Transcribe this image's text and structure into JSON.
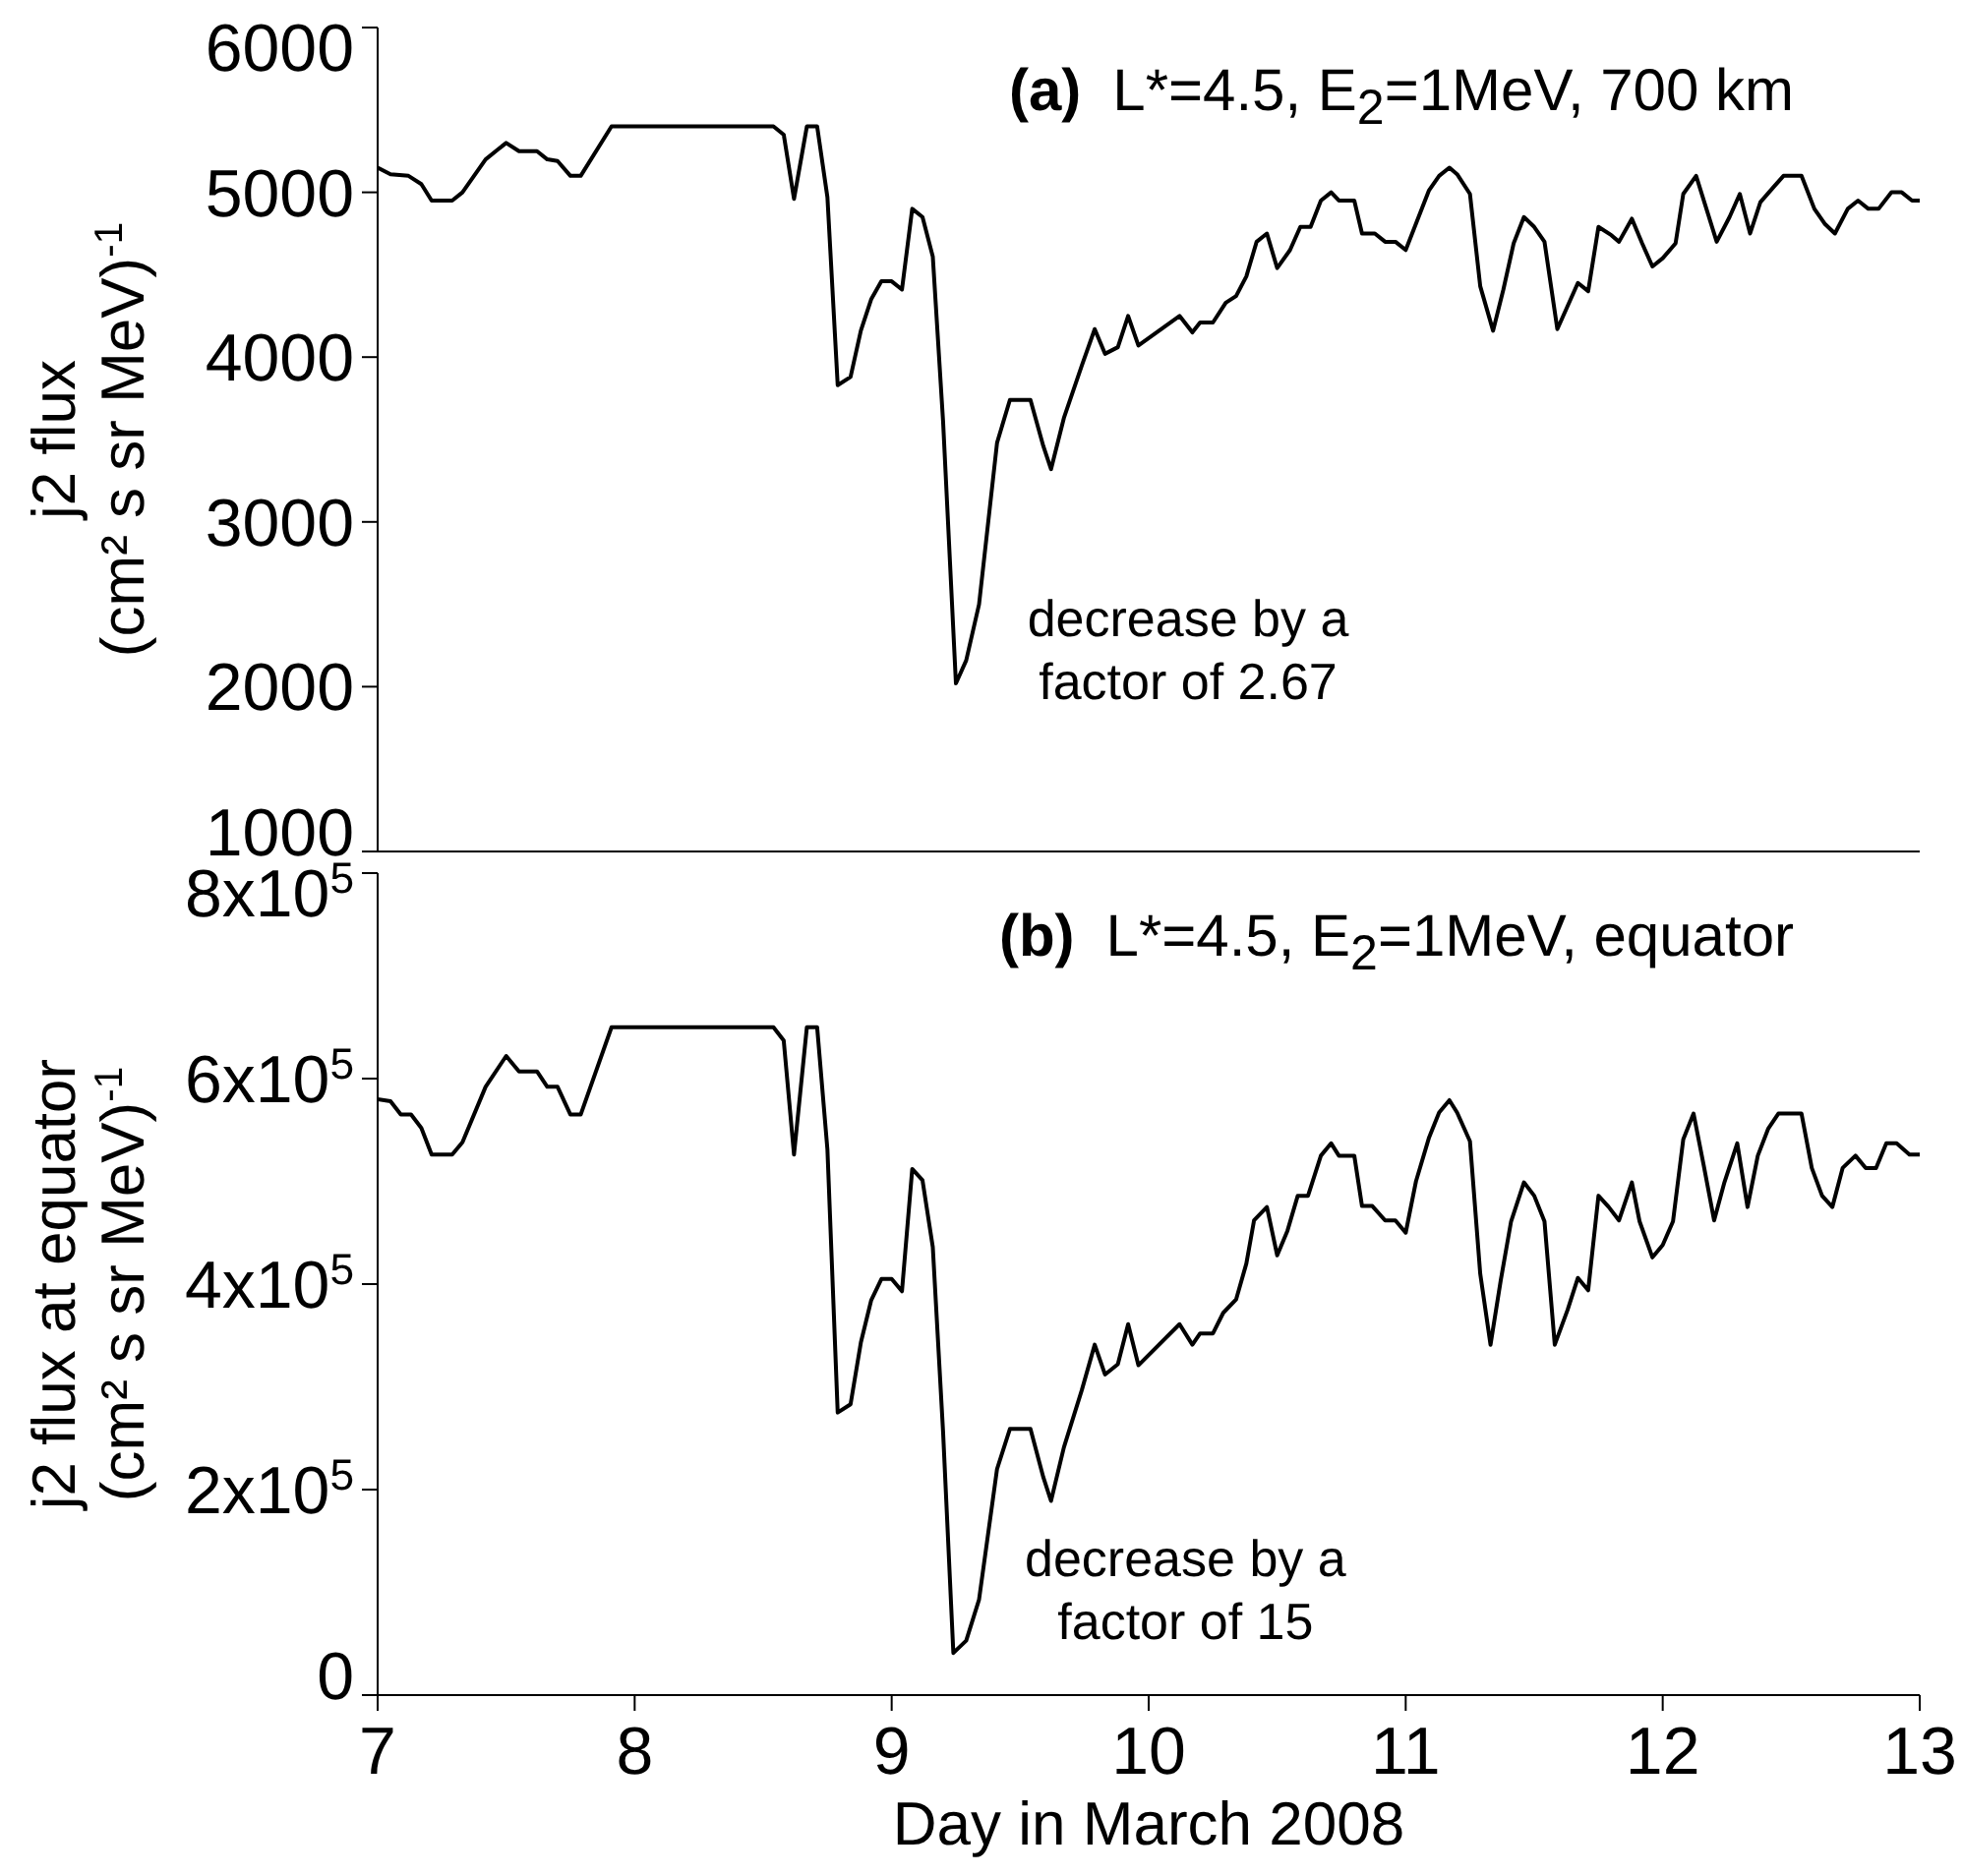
{
  "chart_data": [
    {
      "type": "line",
      "title": "(a) L*=4.5, E$_{2}$=1MeV, 700 km",
      "ylabel": "j2 flux\n(cm² s sr MeV)$^{-1}$",
      "annotations": [
        {
          "text": "decrease by a\nfactor of 2.67",
          "x": 9.25,
          "y": 2020
        }
      ],
      "x": [
        7.0,
        7.05,
        7.12,
        7.17,
        7.21,
        7.29,
        7.33,
        7.42,
        7.5,
        7.55,
        7.62,
        7.66,
        7.7,
        7.75,
        7.79,
        7.91,
        8.54,
        8.58,
        8.62,
        8.67,
        8.71,
        8.75,
        8.79,
        8.84,
        8.88,
        8.92,
        8.96,
        9.0,
        9.04,
        9.08,
        9.12,
        9.16,
        9.2,
        9.25,
        9.29,
        9.34,
        9.41,
        9.46,
        9.54,
        9.59,
        9.62,
        9.67,
        9.74,
        9.79,
        9.83,
        9.88,
        9.92,
        9.96,
        10.12,
        10.17,
        10.2,
        10.25,
        10.3,
        10.34,
        10.38,
        10.42,
        10.46,
        10.5,
        10.55,
        10.59,
        10.63,
        10.67,
        10.71,
        10.74,
        10.8,
        10.83,
        10.88,
        10.92,
        10.96,
        11.0,
        11.04,
        11.09,
        11.13,
        11.17,
        11.2,
        11.25,
        11.29,
        11.34,
        11.38,
        11.42,
        11.46,
        11.5,
        11.54,
        11.59,
        11.63,
        11.67,
        11.71,
        11.75,
        11.8,
        11.83,
        11.88,
        11.92,
        11.96,
        12.0,
        12.05,
        12.08,
        12.13,
        12.17,
        12.21,
        12.26,
        12.3,
        12.34,
        12.38,
        12.43,
        12.47,
        12.54,
        12.59,
        12.63,
        12.67,
        12.72,
        12.76,
        12.8,
        12.84,
        12.89,
        12.93,
        12.97,
        13.0
      ],
      "series": [
        {
          "color": "#000000",
          "values": [
            5150,
            5110,
            5100,
            5050,
            4950,
            4950,
            5000,
            5200,
            5300,
            5250,
            5250,
            5200,
            5190,
            5100,
            5100,
            5400,
            5400,
            5350,
            4960,
            5400,
            5400,
            4970,
            3830,
            3880,
            4160,
            4350,
            4460,
            4460,
            4410,
            4900,
            4850,
            4610,
            3610,
            2020,
            2160,
            2500,
            3480,
            3740,
            3740,
            3460,
            3320,
            3630,
            3950,
            4170,
            4020,
            4060,
            4250,
            4070,
            4250,
            4150,
            4210,
            4210,
            4330,
            4370,
            4490,
            4700,
            4750,
            4540,
            4650,
            4790,
            4790,
            4950,
            5000,
            4950,
            4950,
            4750,
            4750,
            4700,
            4700,
            4650,
            4810,
            5010,
            5100,
            5150,
            5110,
            4990,
            4430,
            4160,
            4410,
            4690,
            4850,
            4790,
            4700,
            4170,
            4310,
            4450,
            4400,
            4790,
            4740,
            4700,
            4840,
            4690,
            4550,
            4600,
            4690,
            4990,
            5100,
            4900,
            4700,
            4850,
            4990,
            4750,
            4940,
            5030,
            5100,
            5100,
            4900,
            4810,
            4750,
            4900,
            4950,
            4900,
            4900,
            5000,
            5000,
            4950,
            4950
          ]
        }
      ],
      "xlim": [
        7,
        13
      ],
      "xticks": [
        7,
        8,
        9,
        10,
        11,
        12,
        13
      ],
      "ylim": [
        1000,
        6000
      ],
      "yticks": [
        1000,
        2000,
        3000,
        4000,
        5000,
        6000
      ],
      "tick_labels": "y"
    },
    {
      "type": "line",
      "title": "(b) L*=4.5, E$_{2}$=1MeV, equator",
      "xlabel": "Day in March 2008",
      "ylabel": "j2 flux at equator\n(cm² s sr MeV)$^{-1}$",
      "annotations": [
        {
          "text": "decrease by a\nfactor of 15",
          "x": 9.24,
          "y": 41000
        }
      ],
      "x": [
        7.0,
        7.05,
        7.09,
        7.13,
        7.17,
        7.21,
        7.29,
        7.33,
        7.42,
        7.5,
        7.55,
        7.62,
        7.66,
        7.7,
        7.75,
        7.79,
        7.91,
        8.54,
        8.58,
        8.62,
        8.67,
        8.71,
        8.75,
        8.79,
        8.84,
        8.88,
        8.92,
        8.96,
        9.0,
        9.04,
        9.08,
        9.12,
        9.16,
        9.2,
        9.24,
        9.29,
        9.34,
        9.41,
        9.46,
        9.54,
        9.59,
        9.62,
        9.67,
        9.74,
        9.79,
        9.83,
        9.88,
        9.92,
        9.96,
        10.12,
        10.17,
        10.2,
        10.25,
        10.29,
        10.34,
        10.38,
        10.41,
        10.46,
        10.5,
        10.54,
        10.58,
        10.62,
        10.67,
        10.71,
        10.74,
        10.8,
        10.83,
        10.87,
        10.92,
        10.96,
        11.0,
        11.04,
        11.09,
        11.13,
        11.17,
        11.2,
        11.25,
        11.29,
        11.33,
        11.37,
        11.41,
        11.46,
        11.5,
        11.54,
        11.58,
        11.63,
        11.67,
        11.71,
        11.75,
        11.79,
        11.83,
        11.88,
        11.91,
        11.96,
        12.0,
        12.04,
        12.08,
        12.12,
        12.16,
        12.2,
        12.24,
        12.29,
        12.33,
        12.37,
        12.41,
        12.45,
        12.54,
        12.58,
        12.62,
        12.66,
        12.7,
        12.75,
        12.79,
        12.83,
        12.87,
        12.91,
        12.96,
        13.0
      ],
      "series": [
        {
          "color": "#000000",
          "values": [
            580000,
            578000,
            565000,
            565000,
            552000,
            526000,
            526000,
            538000,
            592000,
            622000,
            607000,
            607000,
            592000,
            592000,
            565000,
            565000,
            650000,
            650000,
            637000,
            526000,
            650000,
            650000,
            531000,
            275000,
            283000,
            343000,
            384000,
            405000,
            405000,
            393000,
            512000,
            501000,
            436000,
            256000,
            41000,
            53000,
            93000,
            220000,
            259000,
            259000,
            212000,
            189000,
            241000,
            297000,
            341000,
            312000,
            322000,
            361000,
            321000,
            361000,
            341000,
            352000,
            352000,
            372000,
            385000,
            420000,
            462000,
            475000,
            428000,
            452000,
            486000,
            486000,
            525000,
            537000,
            525000,
            525000,
            476000,
            476000,
            462000,
            462000,
            450000,
            500000,
            542000,
            567000,
            579000,
            567000,
            539000,
            410000,
            341000,
            404000,
            461000,
            499000,
            486000,
            461000,
            341000,
            375000,
            406000,
            394000,
            486000,
            475000,
            462000,
            499000,
            461000,
            426000,
            438000,
            461000,
            541000,
            566000,
            515000,
            462000,
            499000,
            537000,
            475000,
            525000,
            551000,
            566000,
            566000,
            513000,
            486000,
            475000,
            513000,
            525000,
            513000,
            513000,
            537000,
            537000,
            526000,
            526000
          ]
        }
      ],
      "xlim": [
        7,
        13
      ],
      "xticks": [
        7,
        8,
        9,
        10,
        11,
        12,
        13
      ],
      "ylim": [
        0,
        800000
      ],
      "yticks": [
        0,
        {
          "value": 200000,
          "label": "2x10$^{5}$"
        },
        {
          "value": 400000,
          "label": "4x10$^{5}$"
        },
        {
          "value": 600000,
          "label": "6x10$^{5}$"
        },
        {
          "value": 800000,
          "label": "8x10$^{5}$"
        }
      ]
    }
  ]
}
